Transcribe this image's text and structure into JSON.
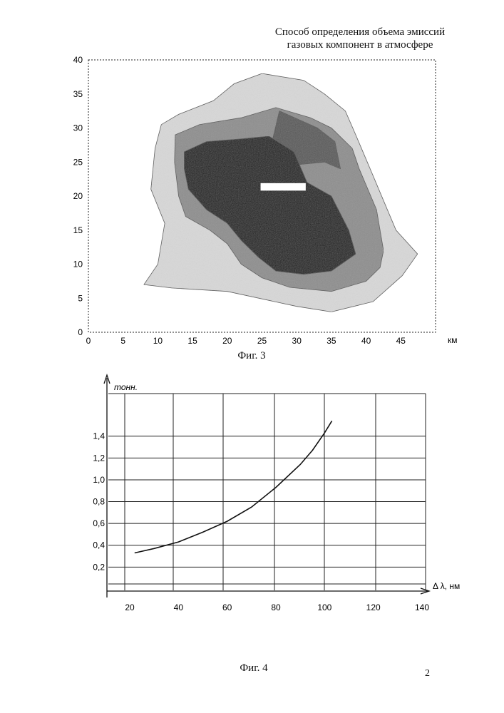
{
  "header": {
    "line1": "Способ определения объема эмиссий",
    "line2": "газовых компонент в атмосфере"
  },
  "figure3": {
    "caption": "Фиг. 3",
    "x_unit": "км",
    "x_ticks": [
      "0",
      "5",
      "10",
      "15",
      "20",
      "25",
      "30",
      "35",
      "40",
      "45"
    ],
    "y_ticks": [
      "0",
      "5",
      "10",
      "15",
      "20",
      "25",
      "30",
      "35",
      "40"
    ],
    "zones": [
      "light-gray",
      "medium-gray",
      "dark-gray",
      "black",
      "white-marker"
    ]
  },
  "figure4": {
    "caption": "Фиг. 4",
    "y_unit": "тонн.",
    "x_label": "Δ λ, нм",
    "y_ticks": [
      "0,2",
      "0,4",
      "0,6",
      "0,8",
      "1,0",
      "1,2",
      "1,4"
    ],
    "x_ticks": [
      "20",
      "40",
      "60",
      "80",
      "100",
      "120",
      "140"
    ]
  },
  "page_number": "2",
  "chart_data": [
    {
      "type": "heatmap",
      "title": "",
      "xlabel": "км",
      "ylabel": "",
      "xlim": [
        0,
        50
      ],
      "ylim": [
        0,
        40
      ],
      "grid": false,
      "zones": [
        {
          "name": "outer-light",
          "polygon": [
            [
              8,
              7
            ],
            [
              10,
              10
            ],
            [
              11,
              16
            ],
            [
              9,
              21
            ],
            [
              9.6,
              27
            ],
            [
              10.5,
              30.5
            ],
            [
              13,
              32
            ],
            [
              18,
              34
            ],
            [
              21,
              36.5
            ],
            [
              25,
              38
            ],
            [
              31,
              37
            ],
            [
              34,
              35
            ],
            [
              37,
              32.5
            ],
            [
              38.5,
              29
            ],
            [
              41,
              23
            ],
            [
              44.3,
              15
            ],
            [
              47.4,
              11.5
            ],
            [
              45.2,
              8.3
            ],
            [
              41,
              4.5
            ],
            [
              35,
              3
            ],
            [
              30,
              3.8
            ],
            [
              20,
              6
            ],
            [
              12,
              6.5
            ]
          ]
        },
        {
          "name": "middle-gray",
          "polygon": [
            [
              12.5,
              29
            ],
            [
              16,
              30.5
            ],
            [
              22,
              31.5
            ],
            [
              27,
              33
            ],
            [
              32,
              31.5
            ],
            [
              35,
              30
            ],
            [
              38,
              27
            ],
            [
              39,
              24
            ],
            [
              41.5,
              18
            ],
            [
              42.5,
              12
            ],
            [
              42,
              9.5
            ],
            [
              40,
              7.5
            ],
            [
              35,
              6
            ],
            [
              29,
              6.6
            ],
            [
              25,
              8
            ],
            [
              22,
              10
            ],
            [
              20,
              13
            ],
            [
              17.5,
              15
            ],
            [
              14,
              17
            ],
            [
              13,
              20
            ],
            [
              12.4,
              25
            ]
          ]
        },
        {
          "name": "dark-gray",
          "polygon": [
            [
              27.5,
              32.5
            ],
            [
              33,
              30
            ],
            [
              35.5,
              28
            ],
            [
              36.3,
              24
            ],
            [
              34,
              25
            ],
            [
              29,
              24.5
            ],
            [
              26,
              26
            ]
          ]
        },
        {
          "name": "black-core",
          "polygon": [
            [
              13.8,
              26.5
            ],
            [
              17,
              28
            ],
            [
              22,
              28.4
            ],
            [
              26,
              28.8
            ],
            [
              29.6,
              26.5
            ],
            [
              31.5,
              22
            ],
            [
              35,
              20
            ],
            [
              37.5,
              15
            ],
            [
              38.5,
              11.5
            ],
            [
              35,
              9
            ],
            [
              31,
              8.5
            ],
            [
              27,
              9
            ],
            [
              24.5,
              11
            ],
            [
              22,
              13.5
            ],
            [
              20,
              16
            ],
            [
              17,
              18
            ],
            [
              14.4,
              21
            ],
            [
              13.8,
              24
            ]
          ]
        },
        {
          "name": "white-marker",
          "rect": [
            24.8,
            20.8,
            31.3,
            21.9
          ]
        }
      ]
    },
    {
      "type": "line",
      "title": "",
      "xlabel": "Δ λ, нм",
      "ylabel": "тонн.",
      "xlim": [
        15,
        145
      ],
      "ylim": [
        -0.05,
        1.65
      ],
      "grid": true,
      "series": [
        {
          "x": [
            22,
            30,
            40,
            50,
            60,
            70,
            80,
            90,
            95,
            100,
            103
          ],
          "y": [
            0.33,
            0.37,
            0.43,
            0.52,
            0.62,
            0.75,
            0.93,
            1.14,
            1.27,
            1.43,
            1.54
          ]
        }
      ]
    }
  ]
}
